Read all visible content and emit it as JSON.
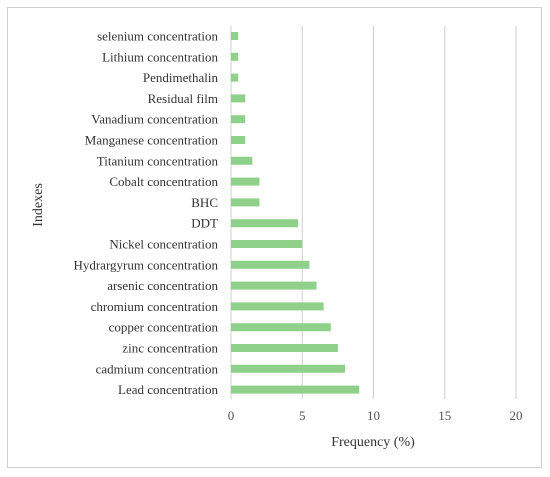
{
  "chart_data": {
    "type": "bar",
    "orientation": "horizontal",
    "categories": [
      "selenium concentration",
      "Lithium concentration",
      "Pendimethalin",
      "Residual film",
      "Vanadium concentration",
      "Manganese  concentration",
      "Titanium  concentration",
      "Cobalt concentration",
      "BHC",
      "DDT",
      "Nickel concentration",
      "Hydrargyrum concentration",
      "arsenic concentration",
      "chromium concentration",
      "copper concentration",
      "zinc concentration",
      "cadmium concentration",
      "Lead concentration"
    ],
    "values": [
      0.5,
      0.5,
      0.5,
      1.0,
      1.0,
      1.0,
      1.5,
      2.0,
      2.0,
      4.7,
      5.0,
      5.5,
      6.0,
      6.5,
      7.0,
      7.5,
      8.0,
      9.0
    ],
    "xlabel": "Frequency (%)",
    "ylabel": "Indexes",
    "xlim": [
      0,
      20
    ],
    "xticks": [
      "0",
      "5",
      "10",
      "15",
      "20"
    ],
    "grid": "vertical",
    "bar_color": "#8fd18a",
    "grid_color": "#cfcfcf"
  }
}
